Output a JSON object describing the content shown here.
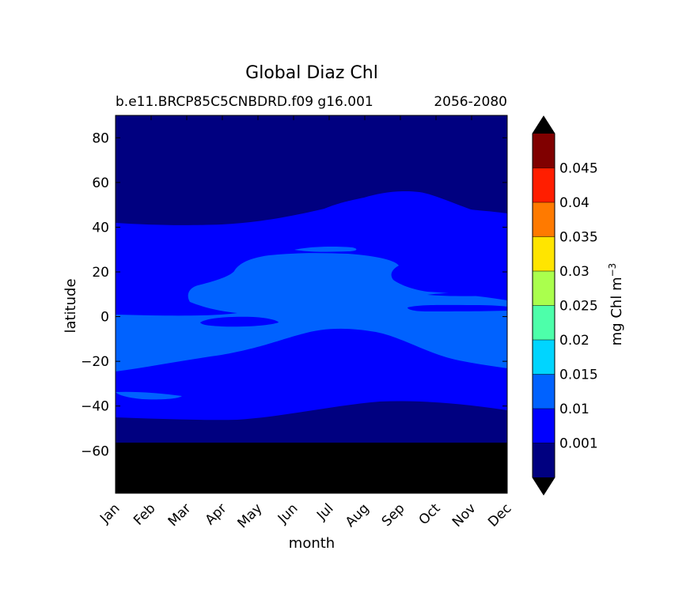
{
  "chart_data": {
    "type": "contour",
    "title": "Global Diaz Chl",
    "subtitle_left": "b.e11.BRCP85C5CNBDRD.f09 g16.001",
    "subtitle_right": "2056-2080",
    "xlabel": "month",
    "ylabel": "latitude",
    "x_categories": [
      "Jan",
      "Feb",
      "Mar",
      "Apr",
      "May",
      "Jun",
      "Jul",
      "Aug",
      "Sep",
      "Oct",
      "Nov",
      "Dec"
    ],
    "xlim": [
      0,
      11
    ],
    "ylim": [
      -79,
      90
    ],
    "yticks": [
      -60,
      -40,
      -20,
      0,
      20,
      40,
      60,
      80
    ],
    "colorbar": {
      "label": "mg Chl m",
      "label_sup": "−3",
      "levels": [
        0.001,
        0.01,
        0.015,
        0.02,
        0.025,
        0.03,
        0.035,
        0.04,
        0.045
      ],
      "tick_labels": [
        "0.001",
        "0.01",
        "0.015",
        "0.02",
        "0.025",
        "0.03",
        "0.035",
        "0.04",
        "0.045"
      ],
      "colors": [
        "#000080",
        "#0000ff",
        "#0062ff",
        "#00d5ff",
        "#4dffaa",
        "#aaff4d",
        "#ffe500",
        "#ff7a00",
        "#ff1e00",
        "#800000"
      ],
      "extend": "both"
    },
    "masked_color": "#000000",
    "masked_below_lat": -56,
    "regions": [
      {
        "name": "band 0.001-0.01 north edge",
        "level": 0.001,
        "x": [
          0,
          1,
          2,
          3,
          4,
          5,
          6,
          7,
          7.5,
          8,
          9,
          10,
          11
        ],
        "lat": [
          42,
          41.5,
          41,
          41.5,
          43,
          45,
          47,
          52,
          55.5,
          56.5,
          55,
          48.5,
          45
        ]
      },
      {
        "name": "band 0.001-0.01 south edge",
        "level": 0.001,
        "x": [
          0,
          1,
          2,
          3,
          4,
          5,
          6,
          7,
          8,
          9,
          10,
          11
        ],
        "lat": [
          -44,
          -44.5,
          -45,
          -44.5,
          -43.5,
          -41.5,
          -39,
          -37.5,
          -37.5,
          -38,
          -39.5,
          -42
        ]
      },
      {
        "name": "band 0.01-0.015 extent",
        "level": 0.01,
        "x": [
          0,
          1,
          2,
          3,
          4,
          5,
          6,
          7,
          8,
          9,
          10,
          11
        ],
        "lat_north": [
          1,
          0.5,
          12,
          19,
          26,
          28,
          28,
          25.5,
          21,
          17,
          12,
          8
        ],
        "lat_south": [
          -24,
          -21,
          -18.5,
          -17,
          -13,
          -7,
          -5.5,
          -6.5,
          -10.5,
          -17.5,
          -20.5,
          -22.5
        ]
      }
    ]
  }
}
